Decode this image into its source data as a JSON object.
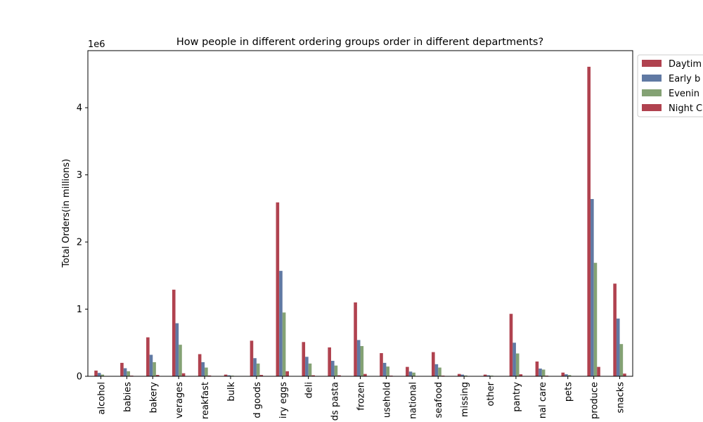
{
  "chart_data": {
    "type": "bar",
    "title": "How people in different ordering groups order in different departments?",
    "xlabel": "",
    "ylabel": "Total Orders(in millions)",
    "y_offset_text": "1e6",
    "ylim": [
      0,
      4850000
    ],
    "yticks": [
      0,
      1000000,
      2000000,
      3000000,
      4000000
    ],
    "ytick_labels": [
      "0",
      "1",
      "2",
      "3",
      "4"
    ],
    "grid": false,
    "legend_position": "upper right (outside axes, clipped)",
    "categories": [
      "alcohol",
      "babies",
      "bakery",
      "beverages",
      "breakfast",
      "bulk",
      "canned goods",
      "dairy eggs",
      "deli",
      "dry goods pasta",
      "frozen",
      "household",
      "international",
      "meat seafood",
      "missing",
      "other",
      "pantry",
      "personal care",
      "pets",
      "produce",
      "snacks"
    ],
    "visible_category_labels": [
      "alcohol",
      "babies",
      "bakery",
      "verages",
      "reakfast",
      "bulk",
      "d goods",
      "iry eggs",
      "deli",
      "ds pasta",
      "frozen",
      "usehold",
      "national",
      "seafood",
      "missing",
      "other",
      "pantry",
      "nal care",
      "pets",
      "produce",
      "snacks"
    ],
    "series": [
      {
        "name": "Daytime",
        "visible_name": "Daytim",
        "color": "#b0424f",
        "values": [
          85000,
          200000,
          580000,
          1290000,
          330000,
          25000,
          530000,
          2590000,
          510000,
          430000,
          1100000,
          345000,
          140000,
          360000,
          35000,
          25000,
          930000,
          220000,
          55000,
          4610000,
          1380000
        ]
      },
      {
        "name": "Early b",
        "visible_name": "Early b",
        "color": "#6079a3",
        "values": [
          50000,
          120000,
          320000,
          790000,
          210000,
          15000,
          270000,
          1570000,
          290000,
          230000,
          540000,
          200000,
          70000,
          180000,
          25000,
          15000,
          500000,
          115000,
          30000,
          2640000,
          860000
        ]
      },
      {
        "name": "Evening",
        "visible_name": "Evenin",
        "color": "#84a274",
        "values": [
          25000,
          75000,
          210000,
          470000,
          130000,
          10000,
          190000,
          950000,
          190000,
          160000,
          450000,
          145000,
          55000,
          130000,
          12000,
          10000,
          340000,
          100000,
          18000,
          1690000,
          480000
        ]
      },
      {
        "name": "Night",
        "visible_name": "Night C",
        "color": "#b0424f",
        "values": [
          5000,
          10000,
          20000,
          45000,
          12000,
          2000,
          20000,
          75000,
          15000,
          15000,
          35000,
          10000,
          5000,
          10000,
          3000,
          2000,
          30000,
          10000,
          5000,
          140000,
          40000
        ]
      }
    ]
  }
}
